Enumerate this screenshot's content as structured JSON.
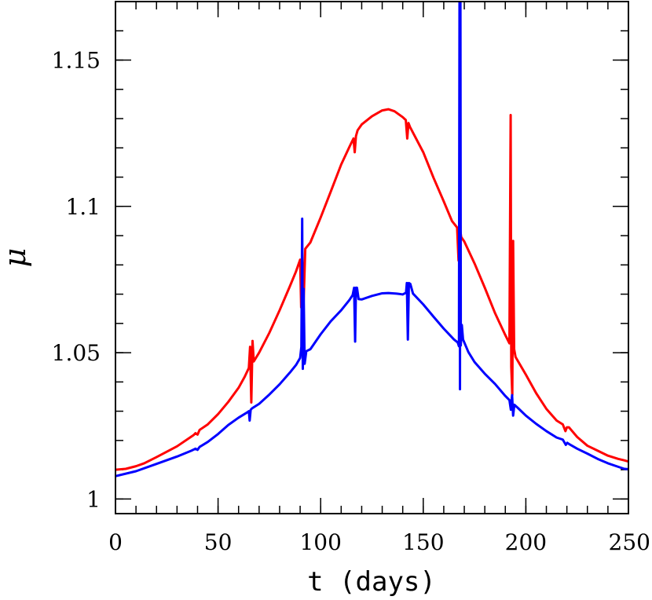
{
  "chart_data": {
    "type": "line",
    "xlabel": "t (days)",
    "ylabel": "μ",
    "xlim": [
      0,
      250
    ],
    "ylim": [
      0.995,
      1.17
    ],
    "x_ticks": [
      0,
      50,
      100,
      150,
      200,
      250
    ],
    "x_tick_labels": [
      "0",
      "50",
      "100",
      "150",
      "200",
      "250"
    ],
    "y_ticks": [
      1,
      1.05,
      1.1,
      1.15
    ],
    "y_tick_labels": [
      "1",
      "1.05",
      "1.1",
      "1.15"
    ],
    "x_minor_step": 10,
    "y_minor_step": 0.01,
    "grid": false,
    "series": [
      {
        "color": "#ff0000",
        "points": [
          [
            0,
            1.01
          ],
          [
            5,
            1.0103
          ],
          [
            10,
            1.0112
          ],
          [
            14,
            1.0122
          ],
          [
            20,
            1.0143
          ],
          [
            30,
            1.018
          ],
          [
            38,
            1.0218
          ],
          [
            39,
            1.0225
          ],
          [
            40,
            1.022
          ],
          [
            41,
            1.0236
          ],
          [
            45,
            1.0255
          ],
          [
            50,
            1.029
          ],
          [
            55,
            1.0332
          ],
          [
            60,
            1.038
          ],
          [
            63,
            1.0418
          ],
          [
            65,
            1.0448
          ],
          [
            65.6,
            1.052
          ],
          [
            66.2,
            1.033
          ],
          [
            66.8,
            1.054
          ],
          [
            67.4,
            1.047
          ],
          [
            70,
            1.05
          ],
          [
            75,
            1.0568
          ],
          [
            80,
            1.0645
          ],
          [
            85,
            1.0727
          ],
          [
            88,
            1.0778
          ],
          [
            90,
            1.0818
          ],
          [
            90.5,
            1.0655
          ],
          [
            91,
            1.0855
          ],
          [
            91.6,
            1.065
          ],
          [
            92.5,
            1.0855
          ],
          [
            95,
            1.0877
          ],
          [
            100,
            1.0962
          ],
          [
            105,
            1.1052
          ],
          [
            110,
            1.1143
          ],
          [
            114,
            1.1203
          ],
          [
            116,
            1.1232
          ],
          [
            116.6,
            1.1185
          ],
          [
            117.2,
            1.124
          ],
          [
            118,
            1.126
          ],
          [
            120,
            1.128
          ],
          [
            125,
            1.1308
          ],
          [
            130,
            1.1328
          ],
          [
            133,
            1.1332
          ],
          [
            136,
            1.1325
          ],
          [
            140,
            1.1305
          ],
          [
            141.5,
            1.1295
          ],
          [
            142.2,
            1.1232
          ],
          [
            142.8,
            1.1285
          ],
          [
            143.5,
            1.1272
          ],
          [
            145,
            1.1252
          ],
          [
            150,
            1.1185
          ],
          [
            155,
            1.1098
          ],
          [
            160,
            1.1017
          ],
          [
            164,
            1.095
          ],
          [
            166.5,
            1.0928
          ],
          [
            167.2,
            1.0815
          ],
          [
            167.8,
            1.093
          ],
          [
            168.5,
            1.0895
          ],
          [
            170,
            1.088
          ],
          [
            175,
            1.0805
          ],
          [
            180,
            1.0722
          ],
          [
            185,
            1.0635
          ],
          [
            190,
            1.056
          ],
          [
            192,
            1.0532
          ],
          [
            192.6,
            1.1312
          ],
          [
            192.9,
            1.0452
          ],
          [
            193.4,
            1.0355
          ],
          [
            193.8,
            1.0882
          ],
          [
            194.3,
            1.0512
          ],
          [
            195,
            1.0485
          ],
          [
            200,
            1.0425
          ],
          [
            205,
            1.0362
          ],
          [
            210,
            1.0308
          ],
          [
            215,
            1.0268
          ],
          [
            218,
            1.0255
          ],
          [
            219.3,
            1.0232
          ],
          [
            220,
            1.0245
          ],
          [
            221,
            1.0245
          ],
          [
            225,
            1.0212
          ],
          [
            230,
            1.0182
          ],
          [
            235,
            1.0165
          ],
          [
            240,
            1.0148
          ],
          [
            245,
            1.0137
          ],
          [
            248,
            1.0132
          ],
          [
            250,
            1.0128
          ]
        ]
      },
      {
        "color": "#0000ff",
        "points": [
          [
            0,
            1.0078
          ],
          [
            10,
            1.0095
          ],
          [
            20,
            1.012
          ],
          [
            30,
            1.0145
          ],
          [
            37,
            1.0165
          ],
          [
            39,
            1.0172
          ],
          [
            40,
            1.0168
          ],
          [
            41,
            1.0178
          ],
          [
            45,
            1.0195
          ],
          [
            50,
            1.0222
          ],
          [
            55,
            1.0253
          ],
          [
            60,
            1.0278
          ],
          [
            64,
            1.0295
          ],
          [
            65,
            1.03
          ],
          [
            65.4,
            1.0268
          ],
          [
            65.9,
            1.0305
          ],
          [
            66.6,
            1.031
          ],
          [
            70,
            1.0325
          ],
          [
            75,
            1.0357
          ],
          [
            80,
            1.0392
          ],
          [
            85,
            1.0432
          ],
          [
            88,
            1.0458
          ],
          [
            90,
            1.0482
          ],
          [
            90.6,
            1.052
          ],
          [
            91,
            1.0958
          ],
          [
            91.3,
            1.0445
          ],
          [
            91.7,
            1.0718
          ],
          [
            92.2,
            1.0462
          ],
          [
            93,
            1.0505
          ],
          [
            95,
            1.0512
          ],
          [
            100,
            1.0563
          ],
          [
            105,
            1.0608
          ],
          [
            110,
            1.0645
          ],
          [
            114,
            1.068
          ],
          [
            115.6,
            1.0697
          ],
          [
            116.3,
            1.0722
          ],
          [
            116.8,
            1.0538
          ],
          [
            117.2,
            1.0722
          ],
          [
            117.7,
            1.0722
          ],
          [
            118.5,
            1.0683
          ],
          [
            120,
            1.0682
          ],
          [
            125,
            1.0694
          ],
          [
            130,
            1.0703
          ],
          [
            133,
            1.0704
          ],
          [
            137,
            1.0702
          ],
          [
            140,
            1.0699
          ],
          [
            141.6,
            1.0705
          ],
          [
            142,
            1.0738
          ],
          [
            142.5,
            1.0545
          ],
          [
            143,
            1.0738
          ],
          [
            143.7,
            1.0735
          ],
          [
            145,
            1.0702
          ],
          [
            150,
            1.0665
          ],
          [
            155,
            1.0623
          ],
          [
            160,
            1.0582
          ],
          [
            165,
            1.0545
          ],
          [
            166.8,
            1.0535
          ],
          [
            167.4,
            1.0522
          ],
          [
            167.7,
            1.182
          ],
          [
            167.9,
            1.0375
          ],
          [
            168.1,
            1.182
          ],
          [
            168.3,
            1.0525
          ],
          [
            168.8,
            1.0595
          ],
          [
            169.4,
            1.0545
          ],
          [
            172,
            1.0502
          ],
          [
            175,
            1.0468
          ],
          [
            180,
            1.0428
          ],
          [
            185,
            1.0393
          ],
          [
            190,
            1.0352
          ],
          [
            192,
            1.0338
          ],
          [
            192.7,
            1.0305
          ],
          [
            193.3,
            1.0355
          ],
          [
            193.8,
            1.0285
          ],
          [
            194.4,
            1.0322
          ],
          [
            196,
            1.0312
          ],
          [
            200,
            1.0285
          ],
          [
            205,
            1.0257
          ],
          [
            210,
            1.0232
          ],
          [
            215,
            1.021
          ],
          [
            218,
            1.0203
          ],
          [
            219.5,
            1.0185
          ],
          [
            220.2,
            1.0192
          ],
          [
            221,
            1.0188
          ],
          [
            225,
            1.0172
          ],
          [
            230,
            1.0155
          ],
          [
            235,
            1.0137
          ],
          [
            240,
            1.0122
          ],
          [
            245,
            1.011
          ],
          [
            248,
            1.0103
          ],
          [
            250,
            1.0102
          ]
        ]
      }
    ]
  }
}
